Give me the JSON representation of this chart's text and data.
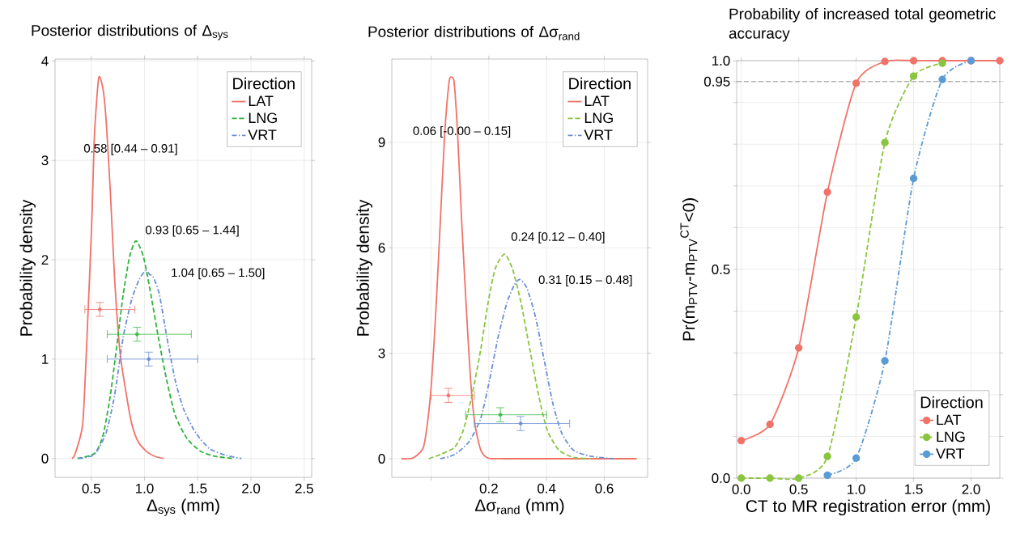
{
  "chart_data": [
    {
      "type": "line",
      "title": "Posterior distributions of Δ$_{sys}$",
      "xlabel": "Δ$_{sys}$ (mm)",
      "ylabel": "Probability density",
      "legend_title": "Direction",
      "legend": "top right",
      "grid": true,
      "xlim": [
        0.16,
        2.57
      ],
      "ylim": [
        -0.19,
        4.02
      ],
      "xticks": [
        0.5,
        {
          "value": 1,
          "label": "1.0"
        },
        1.5,
        {
          "value": 2,
          "label": "2.0"
        },
        2.5
      ],
      "yticks": [
        0,
        1,
        2,
        3,
        4
      ],
      "series": [
        {
          "name": "LAT",
          "color": "#f0736a",
          "line_style": "solid",
          "x": [
            0.32,
            0.35,
            0.42,
            0.46,
            0.505,
            0.53,
            0.57,
            0.61,
            0.64,
            0.68,
            0.72,
            0.77,
            0.83,
            0.88,
            0.94,
            1.02,
            1.1,
            1.18
          ],
          "values": [
            0,
            0.05,
            0.35,
            1.22,
            2.38,
            3.25,
            3.83,
            3.72,
            3.4,
            2.67,
            1.8,
            1.07,
            0.64,
            0.35,
            0.17,
            0.07,
            0.02,
            0
          ]
        },
        {
          "name": "LNG",
          "color": "#2fb43a",
          "line_style": "dashed",
          "x": [
            0.37,
            0.53,
            0.61,
            0.68,
            0.75,
            0.8,
            0.86,
            0.92,
            0.99,
            1.06,
            1.13,
            1.21,
            1.29,
            1.4,
            1.53,
            1.67,
            1.83
          ],
          "values": [
            0,
            0.05,
            0.23,
            0.64,
            1.22,
            1.65,
            2.03,
            2.19,
            2.03,
            1.65,
            1.22,
            0.78,
            0.43,
            0.2,
            0.07,
            0.02,
            0
          ]
        },
        {
          "name": "VRT",
          "color": "#6b8fd6",
          "line_style": "dotted",
          "x": [
            0.38,
            0.53,
            0.64,
            0.72,
            0.8,
            0.88,
            0.95,
            1.01,
            1.05,
            1.08,
            1.14,
            1.21,
            1.29,
            1.37,
            1.48,
            1.61,
            1.77,
            1.91
          ],
          "values": [
            0,
            0.04,
            0.26,
            0.64,
            1.22,
            1.6,
            1.8,
            1.89,
            1.85,
            1.83,
            1.65,
            1.22,
            0.78,
            0.49,
            0.26,
            0.1,
            0.03,
            0
          ]
        },
        {
          "type": "scatter",
          "color": "#f0736a",
          "x": [
            0.58
          ],
          "values": [
            1.5
          ],
          "errors": [
            0.07
          ],
          "xerrors": [
            [
              0.44,
              0.91
            ]
          ]
        },
        {
          "type": "scatter",
          "color": "#3cba4a",
          "x": [
            0.93
          ],
          "values": [
            1.25
          ],
          "errors": [
            0.07
          ],
          "xerrors": [
            [
              0.65,
              1.44
            ]
          ]
        },
        {
          "type": "scatter",
          "color": "#6b8fd6",
          "x": [
            1.04
          ],
          "values": [
            1.0
          ],
          "errors": [
            0.07
          ],
          "xerrors": [
            [
              0.65,
              1.5
            ]
          ]
        }
      ],
      "annotations": [
        "0.58 [0.44 – 0.91]",
        "0.93 [0.65 – 1.44]",
        "1.04 [0.65 – 1.50]"
      ]
    },
    {
      "type": "line",
      "title": "Posterior distributions of Δσ$_{rand}$",
      "xlabel": "Δσ$_{rand}$ (mm)",
      "ylabel": "Probability density",
      "legend_title": "Direction",
      "legend": "top right",
      "grid": true,
      "xlim": [
        -0.136,
        0.75
      ],
      "ylim": [
        -0.53,
        11.37
      ],
      "xticks": [
        {
          "value": 0,
          "label": null
        },
        0.2,
        0.4,
        0.6
      ],
      "yticks": [
        0,
        3,
        6,
        9
      ],
      "series": [
        {
          "name": "LAT",
          "color": "#f0736a",
          "line_style": "solid",
          "x": [
            -0.103,
            -0.063,
            -0.028,
            -0.013,
            0.002,
            0.017,
            0.032,
            0.047,
            0.062,
            0.07,
            0.08,
            0.092,
            0.106,
            0.122,
            0.137,
            0.152,
            0.172,
            0.197,
            0.252,
            0.712
          ],
          "values": [
            0,
            0.02,
            0.29,
            0.98,
            2.22,
            4.28,
            6.75,
            9.22,
            10.7,
            10.86,
            10.7,
            9.22,
            6.75,
            4.28,
            2.22,
            0.98,
            0.25,
            0.02,
            0,
            0
          ]
        },
        {
          "name": "LNG",
          "color": "#8ac43f",
          "line_style": "dashed",
          "x": [
            -0.008,
            0.032,
            0.082,
            0.112,
            0.142,
            0.172,
            0.197,
            0.222,
            0.254,
            0.282,
            0.312,
            0.342,
            0.372,
            0.402,
            0.442,
            0.492,
            0.552
          ],
          "values": [
            0,
            0.12,
            0.33,
            0.82,
            1.82,
            3.11,
            4.42,
            5.4,
            5.82,
            5.4,
            4.42,
            3.11,
            1.82,
            0.82,
            0.25,
            0.04,
            0
          ]
        },
        {
          "name": "VRT",
          "color": "#6b8fd6",
          "line_style": "dotted",
          "x": [
            0.032,
            0.082,
            0.132,
            0.172,
            0.202,
            0.232,
            0.262,
            0.287,
            0.307,
            0.332,
            0.362,
            0.392,
            0.422,
            0.452,
            0.492,
            0.552,
            0.632
          ],
          "values": [
            0,
            0.12,
            0.49,
            1.15,
            2.22,
            3.45,
            4.42,
            4.92,
            5.1,
            4.85,
            4.02,
            2.79,
            1.56,
            0.74,
            0.25,
            0.07,
            0
          ]
        },
        {
          "type": "scatter",
          "color": "#f0736a",
          "x": [
            0.06
          ],
          "values": [
            1.8
          ],
          "errors": [
            0.2
          ],
          "xerrors": [
            [
              0,
              0.15
            ]
          ]
        },
        {
          "type": "scatter",
          "color": "#3cba4a",
          "x": [
            0.24
          ],
          "values": [
            1.25
          ],
          "errors": [
            0.2
          ],
          "xerrors": [
            [
              0.12,
              0.4
            ]
          ]
        },
        {
          "type": "scatter",
          "color": "#6b8fd6",
          "x": [
            0.31
          ],
          "values": [
            1.0
          ],
          "errors": [
            0.2
          ],
          "xerrors": [
            [
              0.15,
              0.48
            ]
          ]
        }
      ],
      "annotations": [
        "0.06 [-0.00 – 0.15]",
        "0.24 [0.12 – 0.40]",
        "0.31 [0.15 – 0.48]"
      ]
    },
    {
      "type": "line",
      "title": "Probability of increased total geometric accuracy",
      "xlabel": "CT to MR registration error (mm)",
      "ylabel": "Pr(m$_{PTV}$-m$_{PTV}$$^{CT}$<0)",
      "legend_title": "Direction",
      "legend": "bottom right",
      "grid": true,
      "marker": "circle",
      "xlim": [
        -0.04,
        2.25
      ],
      "ylim": [
        0,
        1
      ],
      "xticks": [
        {
          "value": 0,
          "label": "0.0"
        },
        0.5,
        {
          "value": 1,
          "label": "1.0"
        },
        1.5,
        {
          "value": 2,
          "label": "2.0"
        }
      ],
      "yticks": [
        {
          "value": 0,
          "label": "0.0"
        },
        {
          "value": 0.1,
          "label": null
        },
        {
          "value": 0.2,
          "label": null
        },
        {
          "value": 0.3,
          "label": null
        },
        {
          "value": 0.4,
          "label": null
        },
        0.5,
        {
          "value": 0.6,
          "label": null
        },
        {
          "value": 0.7,
          "label": null
        },
        {
          "value": 0.8,
          "label": null
        },
        {
          "value": 0.9,
          "label": null
        },
        0.95,
        {
          "value": 1,
          "label": "1.0"
        }
      ],
      "ref_lines": [
        {
          "axis": "y",
          "value": 0.95,
          "color": "#808080",
          "line_style": "dashed"
        }
      ],
      "series": [
        {
          "name": "LAT",
          "color": "#f0736a",
          "line_style": "solid",
          "x": [
            0,
            0.25,
            0.5,
            0.75,
            1.0,
            1.25,
            1.5,
            1.75,
            2.0,
            2.25
          ],
          "values": [
            0.09,
            0.129,
            0.312,
            0.685,
            0.946,
            0.998,
            1,
            1,
            1,
            1
          ]
        },
        {
          "name": "LNG",
          "color": "#8bc53f",
          "line_style": "dashed",
          "x": [
            0,
            0.25,
            0.5,
            0.75,
            1.0,
            1.25,
            1.5,
            1.75
          ],
          "values": [
            0,
            0,
            0,
            0.052,
            0.386,
            0.804,
            0.963,
            0.994
          ]
        },
        {
          "name": "VRT",
          "color": "#5b9bd5",
          "line_style": "dotted",
          "x": [
            0.75,
            1.0,
            1.25,
            1.5,
            1.75,
            2.0
          ],
          "values": [
            0.007,
            0.048,
            0.281,
            0.718,
            0.955,
            1
          ]
        }
      ]
    }
  ]
}
